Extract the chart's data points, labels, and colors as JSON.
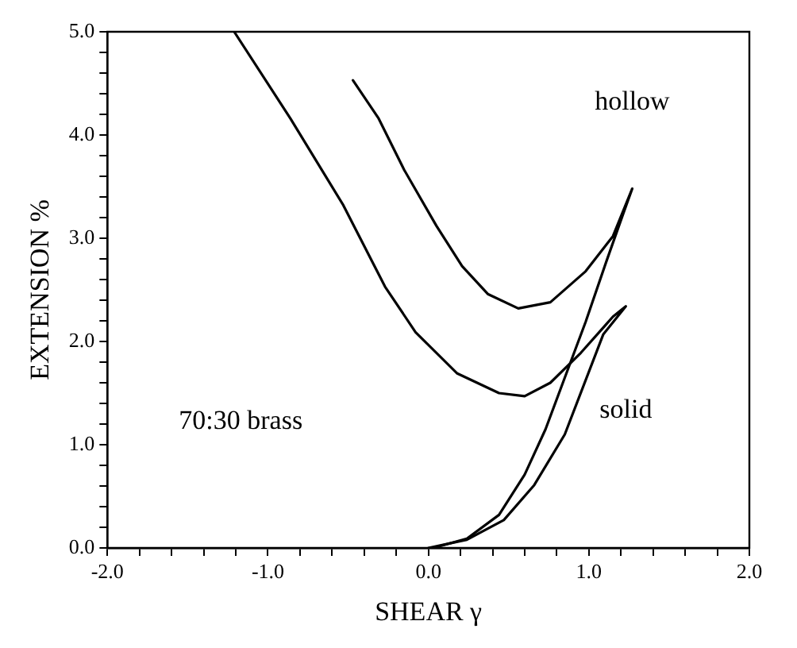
{
  "chart_data": {
    "type": "line",
    "xlabel": "SHEAR γ",
    "ylabel": "EXTENSION %",
    "xlim": [
      -2,
      2
    ],
    "ylim": [
      0,
      5
    ],
    "xticks": [
      {
        "value": -2,
        "label": "-2.0"
      },
      {
        "value": -1.8,
        "label": null
      },
      {
        "value": -1.6,
        "label": null
      },
      {
        "value": -1.4,
        "label": null
      },
      {
        "value": -1.2,
        "label": null
      },
      {
        "value": -1,
        "label": "-1.0"
      },
      {
        "value": -0.8,
        "label": null
      },
      {
        "value": -0.6,
        "label": null
      },
      {
        "value": -0.4,
        "label": null
      },
      {
        "value": -0.2,
        "label": null
      },
      {
        "value": 0,
        "label": "0.0"
      },
      {
        "value": 0.2,
        "label": null
      },
      {
        "value": 0.4,
        "label": null
      },
      {
        "value": 0.6,
        "label": null
      },
      {
        "value": 0.8,
        "label": null
      },
      {
        "value": 1,
        "label": "1.0"
      },
      {
        "value": 1.2,
        "label": null
      },
      {
        "value": 1.4,
        "label": null
      },
      {
        "value": 1.6,
        "label": null
      },
      {
        "value": 1.8,
        "label": null
      },
      {
        "value": 2,
        "label": "2.0"
      }
    ],
    "yticks": [
      {
        "value": 0,
        "label": "0.0"
      },
      {
        "value": 0.2,
        "label": null
      },
      {
        "value": 0.4,
        "label": null
      },
      {
        "value": 0.6,
        "label": null
      },
      {
        "value": 0.8,
        "label": null
      },
      {
        "value": 1,
        "label": "1.0"
      },
      {
        "value": 1.2,
        "label": null
      },
      {
        "value": 1.4,
        "label": null
      },
      {
        "value": 1.6,
        "label": null
      },
      {
        "value": 1.8,
        "label": null
      },
      {
        "value": 2,
        "label": "2.0"
      },
      {
        "value": 2.2,
        "label": null
      },
      {
        "value": 2.4,
        "label": null
      },
      {
        "value": 2.6,
        "label": null
      },
      {
        "value": 2.8,
        "label": null
      },
      {
        "value": 3,
        "label": "3.0"
      },
      {
        "value": 3.2,
        "label": null
      },
      {
        "value": 3.4,
        "label": null
      },
      {
        "value": 3.6,
        "label": null
      },
      {
        "value": 3.8,
        "label": null
      },
      {
        "value": 4,
        "label": "4.0"
      },
      {
        "value": 4.2,
        "label": null
      },
      {
        "value": 4.4,
        "label": null
      },
      {
        "value": 4.6,
        "label": null
      },
      {
        "value": 4.8,
        "label": null
      },
      {
        "value": 5,
        "label": "5.0"
      }
    ],
    "series": [
      {
        "name": "hollow",
        "color": "#000000",
        "x": [
          -0.47,
          -0.31,
          -0.15,
          0.05,
          0.21,
          0.37,
          0.56,
          0.76,
          0.98,
          1.15,
          1.27,
          1.21,
          1.11,
          0.98,
          0.85,
          0.73,
          0.6,
          0.44,
          0.24,
          0.03
        ],
        "values": [
          4.53,
          4.16,
          3.66,
          3.12,
          2.73,
          2.46,
          2.32,
          2.38,
          2.68,
          3.02,
          3.48,
          3.22,
          2.78,
          2.19,
          1.65,
          1.15,
          0.71,
          0.32,
          0.09,
          0
        ]
      },
      {
        "name": "solid",
        "color": "#000000",
        "x": [
          -1.21,
          -0.86,
          -0.53,
          -0.27,
          -0.08,
          0.18,
          0.44,
          0.6,
          0.76,
          0.95,
          1.15,
          1.23,
          1.09,
          0.85,
          0.66,
          0.47,
          0.24,
          0
        ],
        "values": [
          5,
          4.16,
          3.32,
          2.53,
          2.09,
          1.69,
          1.5,
          1.47,
          1.6,
          1.89,
          2.24,
          2.34,
          2.07,
          1.1,
          0.61,
          0.27,
          0.08,
          0
        ]
      }
    ],
    "annotations": [
      "70:30 brass"
    ],
    "legend": false,
    "grid": false,
    "marker": "none",
    "line_style": "solid"
  }
}
